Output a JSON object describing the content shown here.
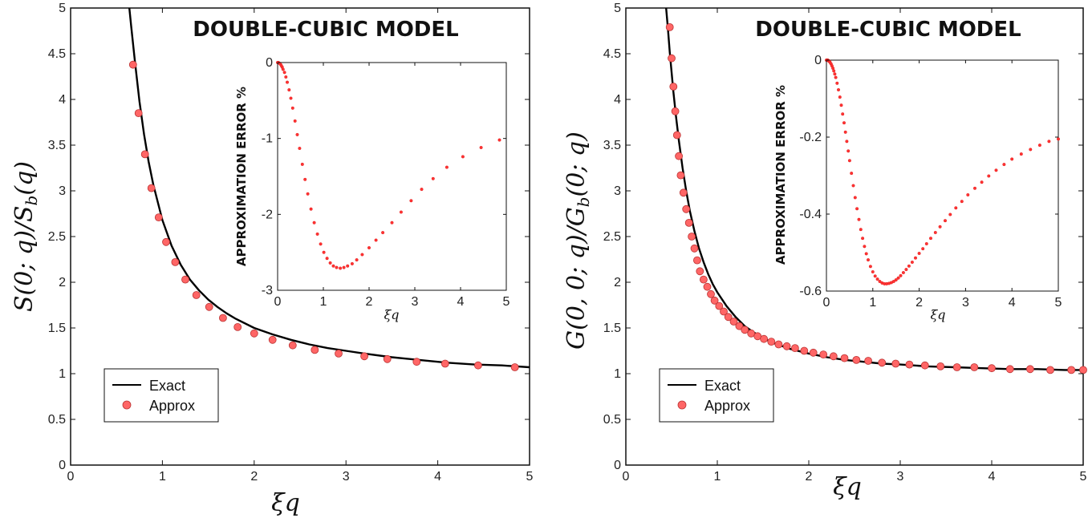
{
  "chart_data": [
    {
      "type": "line",
      "title": "DOUBLE-CUBIC MODEL",
      "xlabel": "ξq",
      "ylabel": "S(0; q)/S_b(q)",
      "ylabel_parts": [
        "S(0; q)/S",
        "b",
        "(q)"
      ],
      "xlim": [
        0,
        5
      ],
      "ylim": [
        0,
        5
      ],
      "xticks": [
        "0",
        "1",
        "2",
        "3",
        "4",
        "5"
      ],
      "yticks": [
        "0",
        "0.5",
        "1",
        "1.5",
        "2",
        "2.5",
        "3",
        "3.5",
        "4",
        "4.5",
        "5"
      ],
      "legend": {
        "position": "lower-left",
        "entries": [
          "Exact",
          "Approx"
        ]
      },
      "series": [
        {
          "name": "Exact",
          "style": "line",
          "color": "#000000",
          "x": [
            0.64,
            0.66,
            0.7,
            0.75,
            0.8,
            0.85,
            0.9,
            1.0,
            1.1,
            1.2,
            1.3,
            1.4,
            1.5,
            1.6,
            1.7,
            1.8,
            2.0,
            2.2,
            2.4,
            2.6,
            2.8,
            3.0,
            3.2,
            3.5,
            3.8,
            4.1,
            4.4,
            4.7,
            5.0
          ],
          "values": [
            5.0,
            4.8,
            4.42,
            3.98,
            3.62,
            3.32,
            3.07,
            2.68,
            2.4,
            2.19,
            2.03,
            1.91,
            1.81,
            1.73,
            1.66,
            1.6,
            1.5,
            1.43,
            1.37,
            1.32,
            1.28,
            1.25,
            1.22,
            1.18,
            1.15,
            1.12,
            1.1,
            1.09,
            1.07
          ]
        },
        {
          "name": "Approx",
          "style": "markers",
          "color": "#ff6666",
          "x": [
            0.68,
            0.74,
            0.81,
            0.88,
            0.96,
            1.04,
            1.14,
            1.25,
            1.37,
            1.51,
            1.66,
            1.82,
            2.0,
            2.2,
            2.42,
            2.66,
            2.92,
            3.2,
            3.45,
            3.77,
            4.08,
            4.44,
            4.84
          ],
          "values": [
            4.38,
            3.85,
            3.4,
            3.03,
            2.71,
            2.44,
            2.22,
            2.03,
            1.86,
            1.73,
            1.61,
            1.51,
            1.44,
            1.37,
            1.31,
            1.26,
            1.22,
            1.19,
            1.16,
            1.13,
            1.11,
            1.09,
            1.07
          ]
        }
      ],
      "inset": {
        "type": "scatter",
        "xlabel": "ξq",
        "ylabel": "APPROXIMATION ERROR  %",
        "xlim": [
          0,
          5
        ],
        "ylim": [
          -3,
          0
        ],
        "xticks": [
          "0",
          "1",
          "2",
          "3",
          "4",
          "5"
        ],
        "yticks": [
          "0",
          "-1",
          "-2",
          "-3"
        ],
        "series": [
          {
            "name": "error",
            "color": "#ff3333",
            "x": [
              0.0,
              0.02,
              0.04,
              0.06,
              0.08,
              0.1,
              0.12,
              0.15,
              0.18,
              0.21,
              0.25,
              0.29,
              0.33,
              0.38,
              0.43,
              0.48,
              0.54,
              0.6,
              0.66,
              0.73,
              0.8,
              0.87,
              0.94,
              1.01,
              1.08,
              1.15,
              1.22,
              1.29,
              1.37,
              1.45,
              1.53,
              1.63,
              1.73,
              1.85,
              2.0,
              2.15,
              2.3,
              2.5,
              2.7,
              2.92,
              3.15,
              3.4,
              3.7,
              4.05,
              4.45,
              4.85
            ],
            "values": [
              0.0,
              0.0,
              -0.01,
              -0.02,
              -0.04,
              -0.06,
              -0.09,
              -0.13,
              -0.19,
              -0.26,
              -0.36,
              -0.47,
              -0.6,
              -0.77,
              -0.95,
              -1.13,
              -1.34,
              -1.54,
              -1.73,
              -1.93,
              -2.11,
              -2.26,
              -2.39,
              -2.5,
              -2.58,
              -2.64,
              -2.68,
              -2.7,
              -2.71,
              -2.7,
              -2.68,
              -2.65,
              -2.6,
              -2.53,
              -2.44,
              -2.34,
              -2.24,
              -2.11,
              -1.97,
              -1.82,
              -1.67,
              -1.53,
              -1.38,
              -1.24,
              -1.12,
              -1.02
            ]
          }
        ]
      }
    },
    {
      "type": "line",
      "title": "DOUBLE-CUBIC MODEL",
      "xlabel": "ξq",
      "ylabel": "G(0, 0; q)/G_b(0; q)",
      "ylabel_parts": [
        "G(0, 0; q)/G",
        "b",
        "(0; q)"
      ],
      "xlim": [
        0,
        5
      ],
      "ylim": [
        0,
        5
      ],
      "xticks": [
        "0",
        "1",
        "2",
        "3",
        "4",
        "5"
      ],
      "yticks": [
        "0",
        "0.5",
        "1",
        "1.5",
        "2",
        "2.5",
        "3",
        "3.5",
        "4",
        "4.5",
        "5"
      ],
      "legend": {
        "position": "lower-left",
        "entries": [
          "Exact",
          "Approx"
        ]
      },
      "series": [
        {
          "name": "Exact",
          "style": "line",
          "color": "#000000",
          "x": [
            0.44,
            0.46,
            0.48,
            0.5,
            0.52,
            0.55,
            0.58,
            0.62,
            0.66,
            0.7,
            0.75,
            0.8,
            0.85,
            0.9,
            0.95,
            1.0,
            1.1,
            1.2,
            1.3,
            1.4,
            1.5,
            1.6,
            1.8,
            2.0,
            2.2,
            2.4,
            2.6,
            2.8,
            3.0,
            3.3,
            3.6,
            3.9,
            4.2,
            4.5,
            4.8,
            5.0
          ],
          "values": [
            5.0,
            4.78,
            4.52,
            4.3,
            4.08,
            3.8,
            3.55,
            3.25,
            3.0,
            2.78,
            2.56,
            2.37,
            2.22,
            2.09,
            1.98,
            1.89,
            1.74,
            1.62,
            1.52,
            1.45,
            1.39,
            1.34,
            1.27,
            1.22,
            1.18,
            1.15,
            1.13,
            1.11,
            1.1,
            1.08,
            1.07,
            1.06,
            1.05,
            1.05,
            1.04,
            1.04
          ]
        },
        {
          "name": "Approx",
          "style": "markers",
          "color": "#ff6666",
          "x": [
            0.48,
            0.5,
            0.52,
            0.54,
            0.56,
            0.58,
            0.6,
            0.63,
            0.66,
            0.69,
            0.72,
            0.75,
            0.78,
            0.81,
            0.85,
            0.89,
            0.93,
            0.97,
            1.02,
            1.07,
            1.12,
            1.18,
            1.24,
            1.3,
            1.37,
            1.44,
            1.51,
            1.59,
            1.67,
            1.76,
            1.85,
            1.95,
            2.05,
            2.16,
            2.27,
            2.39,
            2.52,
            2.65,
            2.8,
            2.95,
            3.1,
            3.27,
            3.44,
            3.62,
            3.81,
            4.0,
            4.2,
            4.42,
            4.64,
            4.87,
            5.0
          ],
          "values": [
            4.79,
            4.45,
            4.14,
            3.87,
            3.61,
            3.38,
            3.17,
            2.98,
            2.8,
            2.65,
            2.5,
            2.37,
            2.24,
            2.12,
            2.03,
            1.95,
            1.87,
            1.8,
            1.74,
            1.68,
            1.62,
            1.57,
            1.52,
            1.48,
            1.44,
            1.41,
            1.38,
            1.35,
            1.32,
            1.3,
            1.28,
            1.25,
            1.23,
            1.21,
            1.19,
            1.17,
            1.15,
            1.14,
            1.12,
            1.11,
            1.1,
            1.09,
            1.08,
            1.07,
            1.07,
            1.06,
            1.05,
            1.05,
            1.04,
            1.04,
            1.04
          ]
        }
      ],
      "inset": {
        "type": "scatter",
        "xlabel": "ξq",
        "ylabel": "APPROXIMATION ERROR  %",
        "xlim": [
          0,
          5
        ],
        "ylim": [
          -0.6,
          0
        ],
        "xticks": [
          "0",
          "1",
          "2",
          "3",
          "4",
          "5"
        ],
        "yticks": [
          "0",
          "-0.2",
          "-0.4",
          "-0.6"
        ],
        "series": [
          {
            "name": "error",
            "color": "#ff3333",
            "x": [
              0.0,
              0.01,
              0.02,
              0.03,
              0.04,
              0.05,
              0.06,
              0.07,
              0.08,
              0.1,
              0.12,
              0.14,
              0.16,
              0.18,
              0.2,
              0.23,
              0.26,
              0.29,
              0.32,
              0.35,
              0.38,
              0.41,
              0.44,
              0.47,
              0.5,
              0.54,
              0.58,
              0.62,
              0.66,
              0.7,
              0.74,
              0.78,
              0.82,
              0.86,
              0.9,
              0.95,
              1.0,
              1.05,
              1.1,
              1.15,
              1.2,
              1.25,
              1.3,
              1.35,
              1.4,
              1.45,
              1.5,
              1.55,
              1.6,
              1.66,
              1.72,
              1.78,
              1.85,
              1.92,
              2.0,
              2.08,
              2.16,
              2.25,
              2.35,
              2.45,
              2.56,
              2.67,
              2.79,
              2.92,
              3.05,
              3.2,
              3.35,
              3.5,
              3.66,
              3.83,
              4.0,
              4.2,
              4.4,
              4.6,
              4.8,
              5.0
            ],
            "values": [
              0.0,
              0.0,
              0.0,
              0.0,
              -0.001,
              -0.002,
              -0.003,
              -0.004,
              -0.006,
              -0.01,
              -0.015,
              -0.021,
              -0.028,
              -0.036,
              -0.045,
              -0.06,
              -0.077,
              -0.096,
              -0.117,
              -0.14,
              -0.163,
              -0.187,
              -0.211,
              -0.236,
              -0.261,
              -0.294,
              -0.326,
              -0.357,
              -0.386,
              -0.414,
              -0.44,
              -0.463,
              -0.484,
              -0.503,
              -0.519,
              -0.536,
              -0.55,
              -0.561,
              -0.569,
              -0.575,
              -0.579,
              -0.581,
              -0.581,
              -0.58,
              -0.578,
              -0.575,
              -0.571,
              -0.566,
              -0.56,
              -0.552,
              -0.544,
              -0.535,
              -0.525,
              -0.514,
              -0.502,
              -0.49,
              -0.477,
              -0.463,
              -0.448,
              -0.433,
              -0.417,
              -0.401,
              -0.384,
              -0.367,
              -0.35,
              -0.333,
              -0.317,
              -0.301,
              -0.286,
              -0.271,
              -0.257,
              -0.244,
              -0.232,
              -0.221,
              -0.211,
              -0.205
            ]
          }
        ]
      }
    }
  ]
}
